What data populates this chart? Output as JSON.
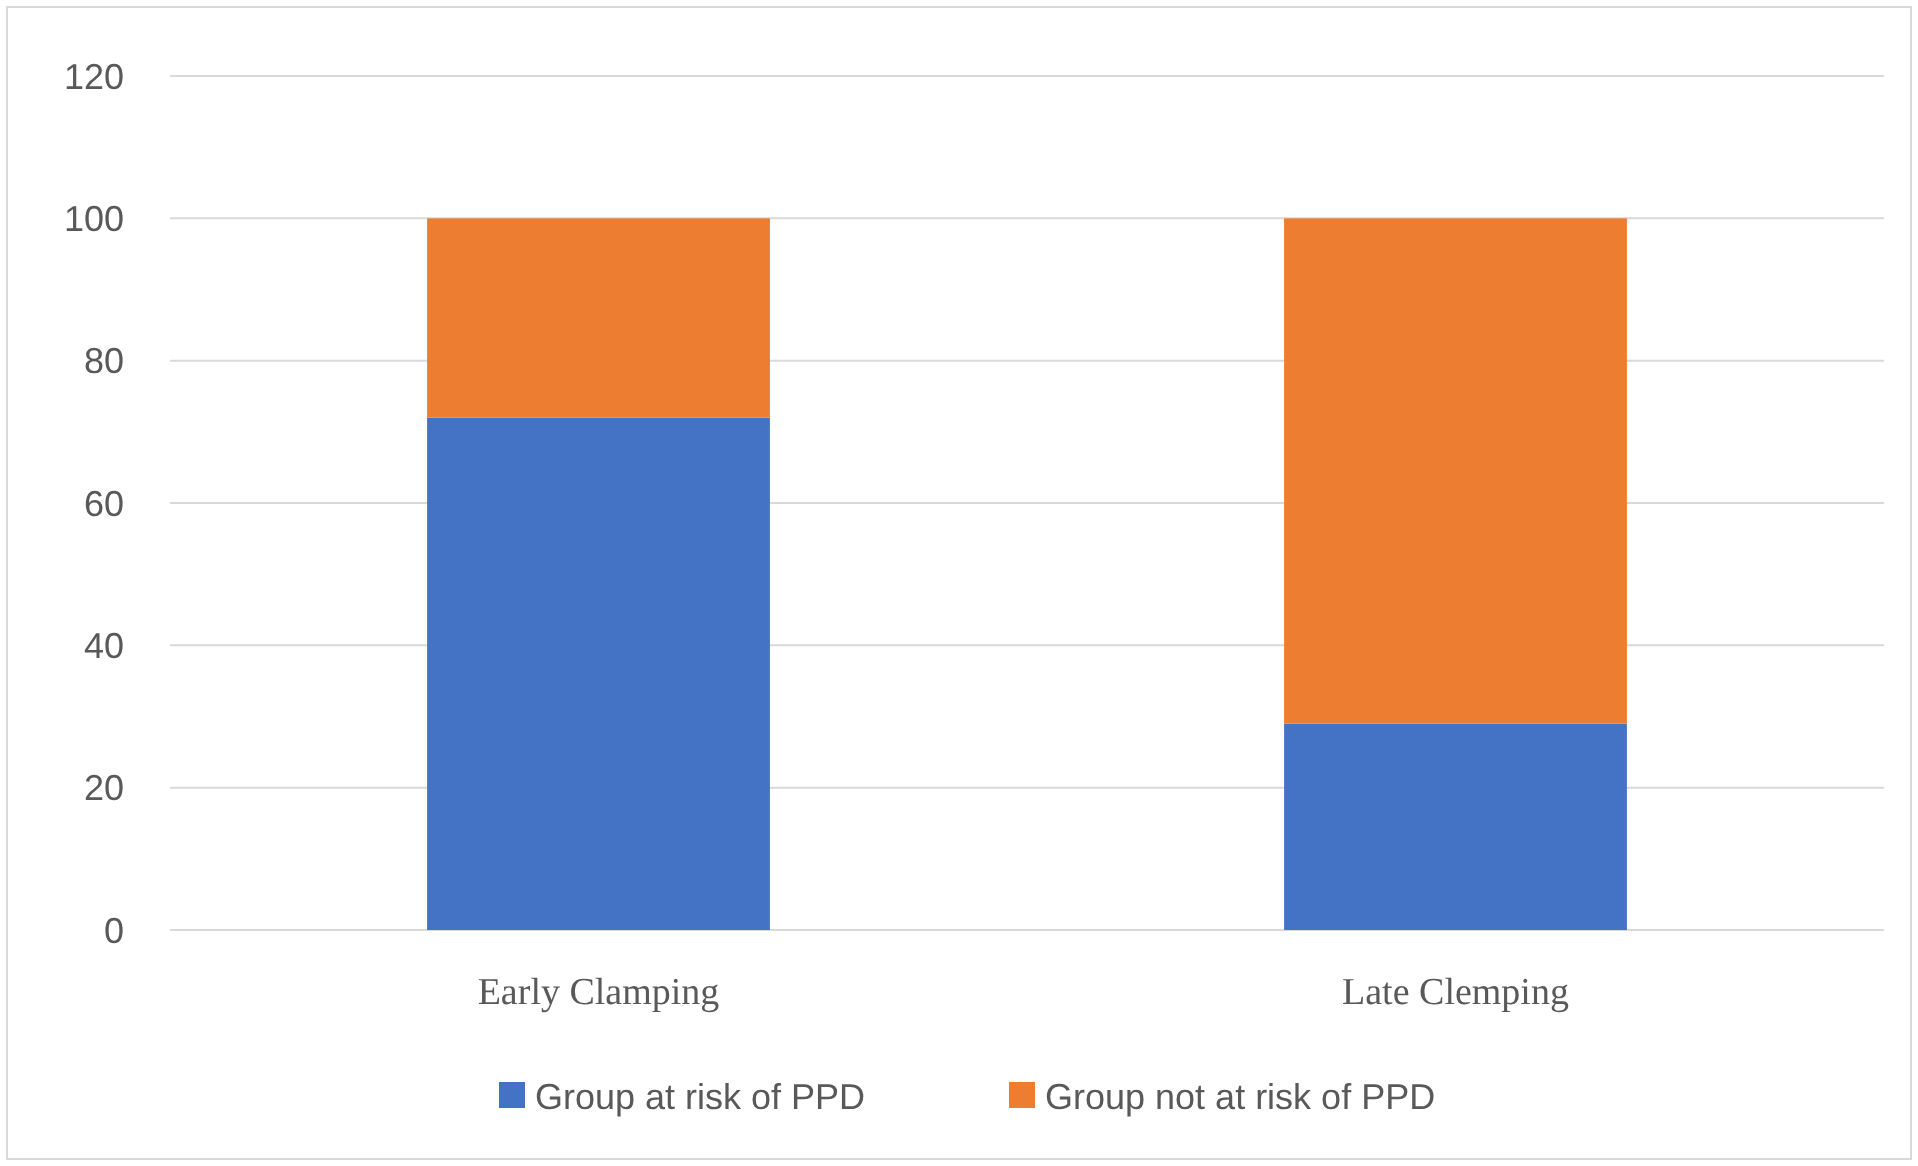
{
  "chart_data": {
    "type": "bar",
    "stacked": true,
    "categories": [
      "Early Clamping",
      "Late Clemping"
    ],
    "series": [
      {
        "name": "Group at risk of PPD",
        "color": "#4472c4",
        "values": [
          72,
          29
        ]
      },
      {
        "name": "Group not at risk of PPD",
        "color": "#ed7d31",
        "values": [
          28,
          71
        ]
      }
    ],
    "ylim": [
      0,
      120
    ],
    "yticks": [
      0,
      20,
      40,
      60,
      80,
      100,
      120
    ],
    "grid": "y",
    "legend": "bottom"
  }
}
